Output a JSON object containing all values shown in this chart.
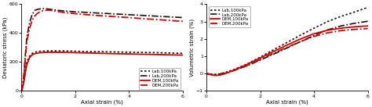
{
  "left": {
    "xlabel": "Axial strain (%)",
    "ylabel": "Deviatoric stress (kPa)",
    "xlim": [
      0,
      6
    ],
    "ylim": [
      0,
      600
    ],
    "yticks": [
      0,
      200,
      400,
      600
    ],
    "xticks": [
      0,
      2,
      4,
      6
    ],
    "legend_loc": "lower right",
    "legend_bbox": null,
    "curves": [
      {
        "label": "Lab,100kPa",
        "color": "#111111",
        "linestyle": "dotted",
        "linewidth": 1.2,
        "x": [
          0,
          0.05,
          0.1,
          0.15,
          0.2,
          0.3,
          0.4,
          0.5,
          0.6,
          0.7,
          0.8,
          1.0,
          1.2,
          1.5,
          2.0,
          2.5,
          3.0,
          3.5,
          4.0,
          4.5,
          5.0,
          5.5,
          6.0
        ],
        "y": [
          0,
          30,
          80,
          150,
          200,
          240,
          260,
          268,
          272,
          275,
          276,
          278,
          278,
          278,
          275,
          273,
          272,
          270,
          268,
          267,
          265,
          263,
          260
        ]
      },
      {
        "label": "Lab,200kPa",
        "color": "#111111",
        "linestyle": "dashdot",
        "linewidth": 1.2,
        "x": [
          0,
          0.05,
          0.1,
          0.15,
          0.2,
          0.3,
          0.4,
          0.5,
          0.6,
          0.7,
          0.8,
          1.0,
          1.2,
          1.5,
          2.0,
          2.5,
          3.0,
          3.5,
          4.0,
          4.5,
          5.0,
          5.5,
          6.0
        ],
        "y": [
          0,
          50,
          130,
          260,
          370,
          470,
          530,
          558,
          565,
          568,
          570,
          567,
          562,
          555,
          548,
          543,
          538,
          533,
          528,
          523,
          518,
          513,
          508
        ]
      },
      {
        "label": "DEM,100kPa",
        "color": "#cc0000",
        "linestyle": "solid",
        "linewidth": 1.3,
        "x": [
          0,
          0.05,
          0.1,
          0.15,
          0.2,
          0.3,
          0.4,
          0.5,
          0.6,
          0.7,
          0.8,
          1.0,
          1.2,
          1.5,
          2.0,
          2.5,
          3.0,
          3.5,
          4.0,
          4.5,
          5.0,
          5.5,
          6.0
        ],
        "y": [
          0,
          25,
          70,
          130,
          180,
          230,
          250,
          258,
          262,
          265,
          266,
          268,
          268,
          267,
          265,
          263,
          260,
          258,
          256,
          254,
          252,
          250,
          248
        ]
      },
      {
        "label": "DEM,200kPa",
        "color": "#cc0000",
        "linestyle": "dashdot",
        "linewidth": 1.3,
        "x": [
          0,
          0.05,
          0.1,
          0.15,
          0.2,
          0.3,
          0.4,
          0.5,
          0.6,
          0.7,
          0.8,
          1.0,
          1.2,
          1.5,
          2.0,
          2.5,
          3.0,
          3.5,
          4.0,
          4.5,
          5.0,
          5.5,
          6.0
        ],
        "y": [
          0,
          40,
          110,
          230,
          340,
          430,
          490,
          520,
          538,
          548,
          555,
          560,
          555,
          545,
          535,
          527,
          520,
          514,
          508,
          500,
          495,
          488,
          482
        ]
      }
    ]
  },
  "right": {
    "xlabel": "Axial strain (%)",
    "ylabel": "Volumetric strain (%)",
    "xlim": [
      0,
      6
    ],
    "ylim": [
      -1,
      4
    ],
    "yticks": [
      -1,
      0,
      1,
      2,
      3,
      4
    ],
    "xticks": [
      0,
      2,
      4,
      6
    ],
    "legend_loc": "upper left",
    "curves": [
      {
        "label": "Lab,100kPa",
        "color": "#111111",
        "linestyle": "dotted",
        "linewidth": 1.2,
        "x": [
          0,
          0.1,
          0.2,
          0.3,
          0.4,
          0.5,
          0.6,
          0.7,
          0.8,
          1.0,
          1.2,
          1.5,
          2.0,
          2.5,
          3.0,
          3.5,
          4.0,
          4.5,
          5.0,
          5.5,
          6.0
        ],
        "y": [
          0,
          -0.02,
          -0.04,
          -0.05,
          -0.04,
          -0.02,
          0.02,
          0.06,
          0.12,
          0.22,
          0.35,
          0.55,
          0.95,
          1.38,
          1.8,
          2.22,
          2.62,
          3.0,
          3.3,
          3.55,
          3.82
        ]
      },
      {
        "label": "Lab,200kPa",
        "color": "#111111",
        "linestyle": "dashdot",
        "linewidth": 1.2,
        "x": [
          0,
          0.1,
          0.2,
          0.3,
          0.4,
          0.5,
          0.6,
          0.7,
          0.8,
          1.0,
          1.2,
          1.5,
          2.0,
          2.5,
          3.0,
          3.5,
          4.0,
          4.5,
          5.0,
          5.5,
          6.0
        ],
        "y": [
          0,
          -0.02,
          -0.04,
          -0.05,
          -0.04,
          -0.02,
          0.02,
          0.06,
          0.1,
          0.18,
          0.28,
          0.45,
          0.78,
          1.12,
          1.48,
          1.85,
          2.2,
          2.52,
          2.75,
          2.9,
          3.02
        ]
      },
      {
        "label": "DEM,100kPa",
        "color": "#cc0000",
        "linestyle": "solid",
        "linewidth": 1.3,
        "x": [
          0,
          0.1,
          0.2,
          0.3,
          0.4,
          0.5,
          0.6,
          0.7,
          0.8,
          1.0,
          1.2,
          1.5,
          2.0,
          2.5,
          3.0,
          3.5,
          4.0,
          4.5,
          5.0,
          5.5,
          6.0
        ],
        "y": [
          0,
          -0.03,
          -0.07,
          -0.1,
          -0.1,
          -0.08,
          -0.04,
          0.0,
          0.06,
          0.18,
          0.32,
          0.52,
          0.9,
          1.28,
          1.65,
          2.0,
          2.3,
          2.5,
          2.62,
          2.7,
          2.75
        ]
      },
      {
        "label": "DEM,200kPa",
        "color": "#cc0000",
        "linestyle": "dashdot",
        "linewidth": 1.3,
        "x": [
          0,
          0.1,
          0.2,
          0.3,
          0.4,
          0.5,
          0.6,
          0.7,
          0.8,
          1.0,
          1.2,
          1.5,
          2.0,
          2.5,
          3.0,
          3.5,
          4.0,
          4.5,
          5.0,
          5.5,
          6.0
        ],
        "y": [
          0,
          -0.03,
          -0.06,
          -0.09,
          -0.09,
          -0.07,
          -0.03,
          0.01,
          0.06,
          0.16,
          0.28,
          0.46,
          0.82,
          1.18,
          1.52,
          1.85,
          2.14,
          2.35,
          2.48,
          2.55,
          2.6
        ]
      }
    ]
  }
}
